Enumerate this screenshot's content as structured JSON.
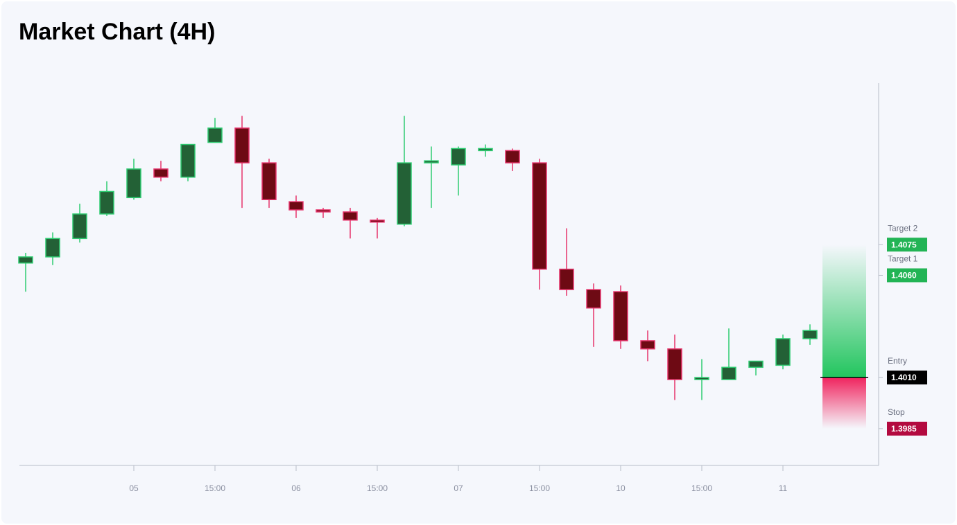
{
  "chart_data": {
    "type": "candlestick",
    "title": "Market Chart (4H)",
    "categories": [
      null,
      null,
      null,
      null,
      "05",
      null,
      null,
      "15:00",
      null,
      null,
      "06",
      null,
      null,
      "15:00",
      null,
      null,
      "07",
      null,
      null,
      "15:00",
      null,
      null,
      "10",
      null,
      null,
      "15:00",
      null,
      null,
      "11",
      null
    ],
    "open": [
      1.4066,
      1.4069,
      1.4078,
      1.409,
      1.4098,
      1.4112,
      1.4108,
      1.4125,
      1.4132,
      1.4115,
      1.4096,
      1.4092,
      1.4091,
      1.4087,
      1.4085,
      1.4115,
      1.4114,
      1.4121,
      1.4121,
      1.4115,
      1.4063,
      1.4053,
      1.4052,
      1.4028,
      1.4024,
      1.4009,
      1.4009,
      1.4015,
      1.4016,
      1.4029
    ],
    "high": [
      1.4071,
      1.4081,
      1.4095,
      1.4106,
      1.4117,
      1.4116,
      1.4124,
      1.4137,
      1.4138,
      1.4117,
      1.4099,
      1.4093,
      1.4093,
      1.4088,
      1.4138,
      1.4123,
      1.4123,
      1.4124,
      1.4122,
      1.4117,
      1.4083,
      1.4056,
      1.4055,
      1.4033,
      1.4031,
      1.4019,
      1.4034,
      1.4018,
      1.4031,
      1.4036
    ],
    "low": [
      1.4052,
      1.4065,
      1.4076,
      1.4089,
      1.4097,
      1.4106,
      1.4106,
      1.4125,
      1.4093,
      1.4093,
      1.4088,
      1.4088,
      1.4078,
      1.4078,
      1.4084,
      1.4093,
      1.4099,
      1.4118,
      1.4111,
      1.4053,
      1.405,
      1.4025,
      1.4024,
      1.4018,
      1.3999,
      1.3999,
      1.4009,
      1.4011,
      1.4014,
      1.4026
    ],
    "close": [
      1.4069,
      1.4078,
      1.409,
      1.4101,
      1.4112,
      1.4108,
      1.4124,
      1.4132,
      1.4115,
      1.4097,
      1.4092,
      1.4091,
      1.4087,
      1.4086,
      1.4115,
      1.4116,
      1.4122,
      1.4122,
      1.4115,
      1.4063,
      1.4053,
      1.4044,
      1.4028,
      1.4024,
      1.4009,
      1.401,
      1.4015,
      1.4018,
      1.4029,
      1.4033
    ],
    "up_color": "#2ecc71",
    "up_fill": "#236136",
    "down_color": "#e6336b",
    "down_fill": "#6e0a14",
    "ylim": [
      1.3967,
      1.4154
    ],
    "entry": {
      "name": "Entry",
      "value": 1.401,
      "value_label": "1.4010",
      "color": "#000000"
    },
    "targets": [
      {
        "name": "Target 2",
        "value": 1.4075,
        "value_label": "1.4075",
        "color": "#22b455"
      },
      {
        "name": "Target 1",
        "value": 1.406,
        "value_label": "1.4060",
        "color": "#22b455"
      }
    ],
    "stop": {
      "name": "Stop",
      "value": 1.3985,
      "value_label": "1.3985",
      "color": "#b30a3f"
    }
  }
}
